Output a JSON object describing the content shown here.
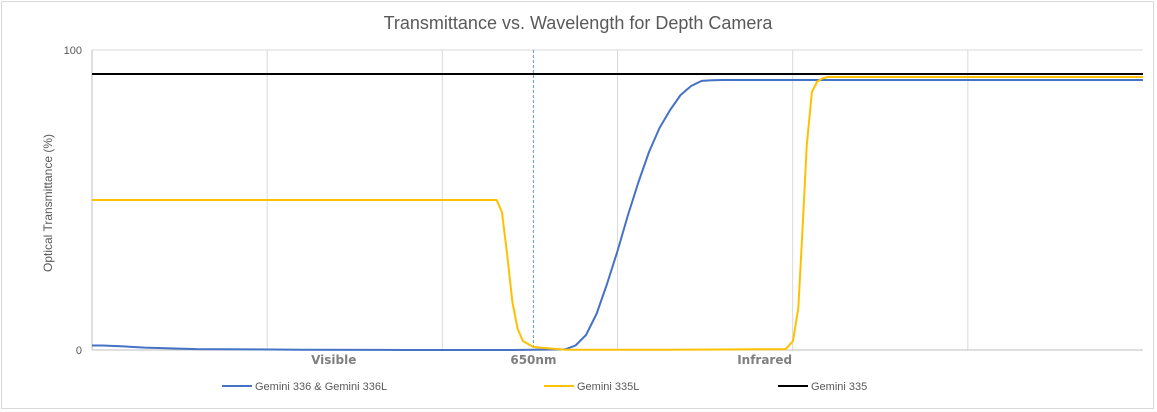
{
  "chart_data": {
    "type": "line",
    "title": "Transmittance vs. Wavelength for Depth Camera",
    "ylabel": "Optical Transmittance (%)",
    "xlabel": "",
    "ylim": [
      0,
      100
    ],
    "yticks": [
      "0",
      "100"
    ],
    "xlim": [
      0,
      100
    ],
    "grid": true,
    "legend_position": "bottom",
    "region_labels": [
      {
        "text": "Visible",
        "x": 23
      },
      {
        "text": "650nm",
        "x": 42
      },
      {
        "text": "Infrared",
        "x": 64
      }
    ],
    "marker_line": {
      "x": 42,
      "style": "dashed",
      "color": "#5b9bd5"
    },
    "series": [
      {
        "name": "Gemini 336 & Gemini 336L",
        "color": "#4472c4",
        "x": [
          0,
          1,
          3,
          5,
          10,
          15,
          20,
          30,
          40,
          45,
          46,
          47,
          48,
          49,
          50,
          51,
          52,
          53,
          54,
          55,
          56,
          57,
          58,
          59,
          60,
          61,
          62,
          70,
          80,
          90,
          100
        ],
        "y": [
          1.5,
          1.5,
          1.2,
          0.8,
          0.3,
          0.2,
          0.1,
          0,
          0,
          0.2,
          1.5,
          5,
          12,
          22,
          33,
          45,
          56,
          66,
          74,
          80,
          85,
          88,
          89.7,
          89.9,
          90,
          90,
          90,
          90,
          90,
          90,
          90
        ]
      },
      {
        "name": "Gemini 335L",
        "color": "#ffc000",
        "x": [
          0,
          10,
          20,
          30,
          38.5,
          39,
          39.5,
          40,
          40.5,
          41,
          42,
          45,
          55,
          66,
          66.7,
          67.2,
          67.6,
          68,
          68.5,
          69,
          69.5,
          70,
          100
        ],
        "y": [
          50,
          50,
          50,
          50,
          50,
          46,
          32,
          16,
          7,
          3,
          1,
          0.1,
          0.1,
          0.3,
          3,
          14,
          40,
          68,
          86,
          89.5,
          90.5,
          91,
          91
        ]
      },
      {
        "name": "Gemini 335",
        "color": "#000000",
        "x": [
          0,
          100
        ],
        "y": [
          92,
          92
        ]
      }
    ]
  }
}
